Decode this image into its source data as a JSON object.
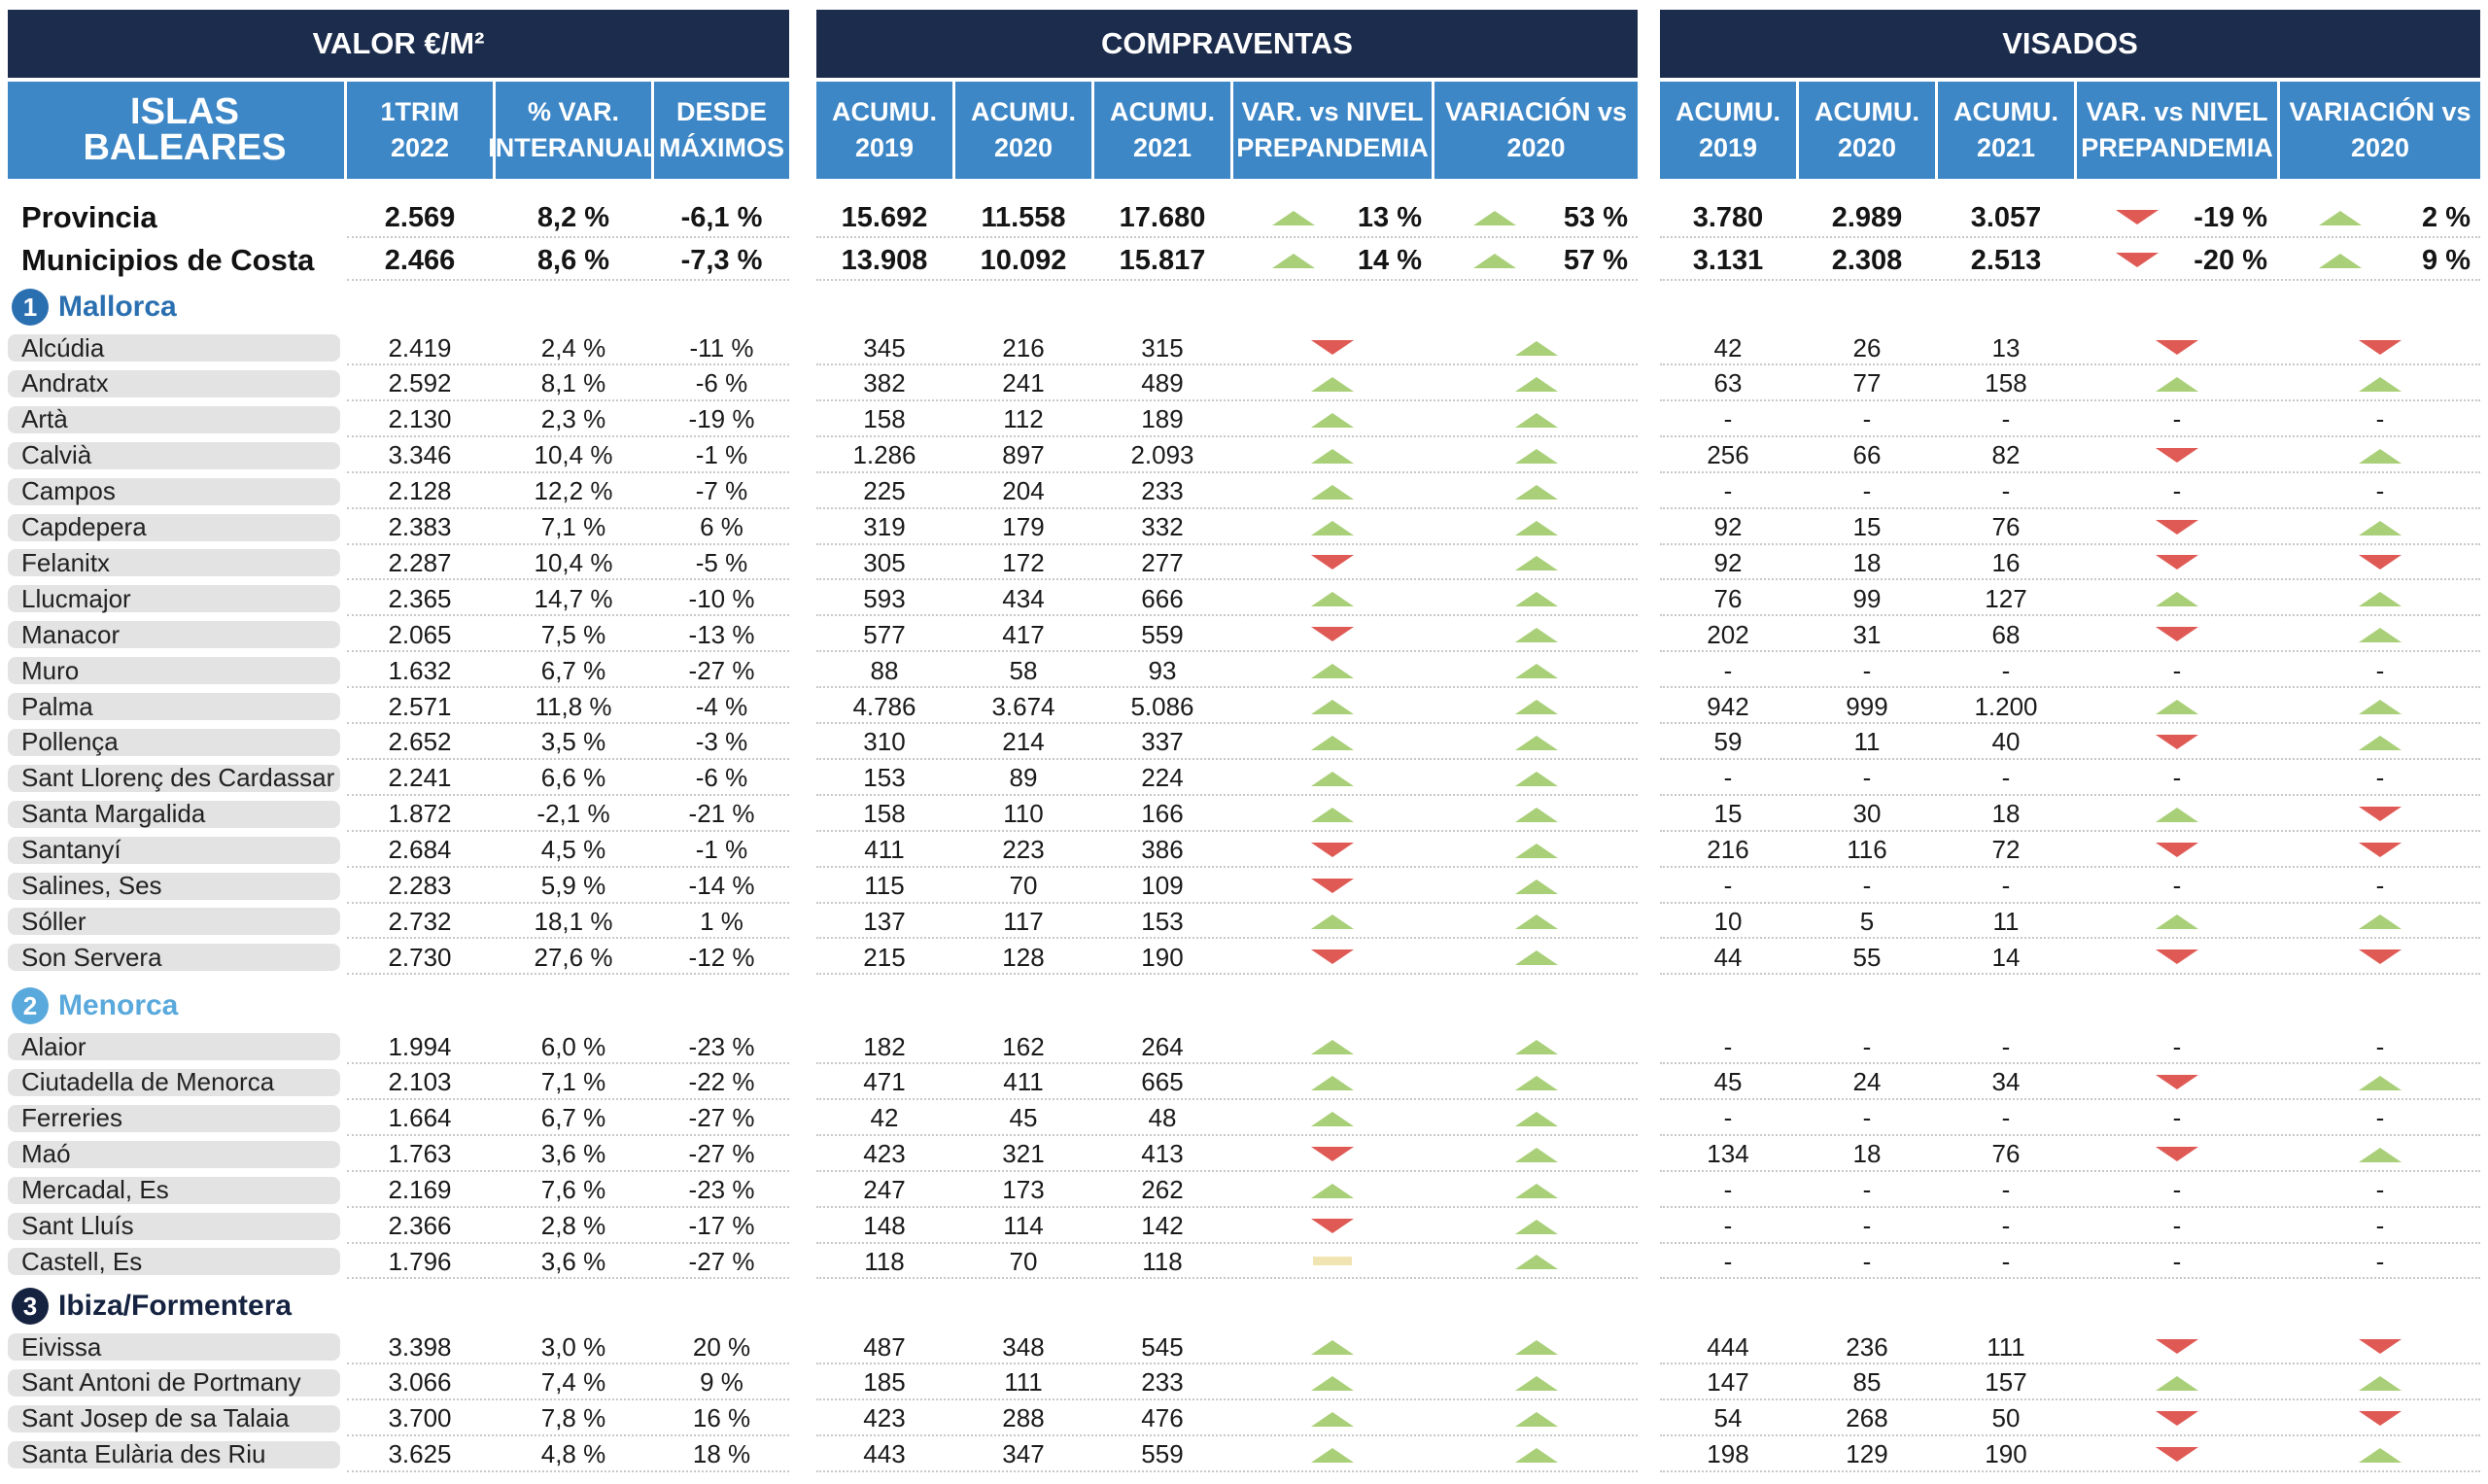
{
  "headers": {
    "valor": "VALOR €/M²",
    "compraventas": "COMPRAVENTAS",
    "visados": "VISADOS",
    "islas": "ISLAS BALEARES",
    "trim": "1TRIM 2022",
    "var_interanual": "% VAR. INTERANUAL",
    "desde_maximos": "DESDE MÁXIMOS",
    "acum_2019": "ACUMU. 2019",
    "acum_2020": "ACUMU. 2020",
    "acum_2021": "ACUMU. 2021",
    "var_nivel": "VAR. vs NIVEL PREPANDEMIA",
    "var_2020": "VARIACIÓN vs 2020"
  },
  "colors": {
    "dark_header": "#1c2c4c",
    "blue_header": "#3d87c7",
    "up": "#a9cf78",
    "down": "#e05a55",
    "flat": "#f1e4b3",
    "mallorca": "#2a6fb0",
    "menorca": "#5aa9dc",
    "ibiza": "#152341"
  },
  "summary": [
    {
      "name": "Provincia",
      "valor": "2.569",
      "var": "8,2 %",
      "max": "-6,1 %",
      "c19": "15.692",
      "c20": "11.558",
      "c21": "17.680",
      "c_pre": {
        "dir": "up",
        "text": "13 %"
      },
      "c_v20": {
        "dir": "up",
        "text": "53 %"
      },
      "v19": "3.780",
      "v20": "2.989",
      "v21": "3.057",
      "v_pre": {
        "dir": "down",
        "text": "-19 %"
      },
      "v_v20": {
        "dir": "up",
        "text": "2 %"
      }
    },
    {
      "name": "Municipios de Costa",
      "valor": "2.466",
      "var": "8,6 %",
      "max": "-7,3 %",
      "c19": "13.908",
      "c20": "10.092",
      "c21": "15.817",
      "c_pre": {
        "dir": "up",
        "text": "14 %"
      },
      "c_v20": {
        "dir": "up",
        "text": "57 %"
      },
      "v19": "3.131",
      "v20": "2.308",
      "v21": "2.513",
      "v_pre": {
        "dir": "down",
        "text": "-20 %"
      },
      "v_v20": {
        "dir": "up",
        "text": "9 %"
      }
    }
  ],
  "sections": [
    {
      "number": "1",
      "name": "Mallorca",
      "color_key": "mallorca",
      "rows": [
        {
          "name": "Alcúdia",
          "valor": "2.419",
          "var": "2,4 %",
          "max": "-11 %",
          "c19": "345",
          "c20": "216",
          "c21": "315",
          "cpre": "down",
          "cv20": "up",
          "v19": "42",
          "v20": "26",
          "v21": "13",
          "vpre": "down",
          "vv20": "down"
        },
        {
          "name": "Andratx",
          "valor": "2.592",
          "var": "8,1 %",
          "max": "-6 %",
          "c19": "382",
          "c20": "241",
          "c21": "489",
          "cpre": "up",
          "cv20": "up",
          "v19": "63",
          "v20": "77",
          "v21": "158",
          "vpre": "up",
          "vv20": "up"
        },
        {
          "name": "Artà",
          "valor": "2.130",
          "var": "2,3 %",
          "max": "-19 %",
          "c19": "158",
          "c20": "112",
          "c21": "189",
          "cpre": "up",
          "cv20": "up",
          "v19": "-",
          "v20": "-",
          "v21": "-",
          "vpre": "-",
          "vv20": "-"
        },
        {
          "name": "Calvià",
          "valor": "3.346",
          "var": "10,4 %",
          "max": "-1 %",
          "c19": "1.286",
          "c20": "897",
          "c21": "2.093",
          "cpre": "up",
          "cv20": "up",
          "v19": "256",
          "v20": "66",
          "v21": "82",
          "vpre": "down",
          "vv20": "up"
        },
        {
          "name": "Campos",
          "valor": "2.128",
          "var": "12,2 %",
          "max": "-7 %",
          "c19": "225",
          "c20": "204",
          "c21": "233",
          "cpre": "up",
          "cv20": "up",
          "v19": "-",
          "v20": "-",
          "v21": "-",
          "vpre": "-",
          "vv20": "-"
        },
        {
          "name": "Capdepera",
          "valor": "2.383",
          "var": "7,1 %",
          "max": "6 %",
          "c19": "319",
          "c20": "179",
          "c21": "332",
          "cpre": "up",
          "cv20": "up",
          "v19": "92",
          "v20": "15",
          "v21": "76",
          "vpre": "down",
          "vv20": "up"
        },
        {
          "name": "Felanitx",
          "valor": "2.287",
          "var": "10,4 %",
          "max": "-5 %",
          "c19": "305",
          "c20": "172",
          "c21": "277",
          "cpre": "down",
          "cv20": "up",
          "v19": "92",
          "v20": "18",
          "v21": "16",
          "vpre": "down",
          "vv20": "down"
        },
        {
          "name": "Llucmajor",
          "valor": "2.365",
          "var": "14,7 %",
          "max": "-10 %",
          "c19": "593",
          "c20": "434",
          "c21": "666",
          "cpre": "up",
          "cv20": "up",
          "v19": "76",
          "v20": "99",
          "v21": "127",
          "vpre": "up",
          "vv20": "up"
        },
        {
          "name": "Manacor",
          "valor": "2.065",
          "var": "7,5 %",
          "max": "-13 %",
          "c19": "577",
          "c20": "417",
          "c21": "559",
          "cpre": "down",
          "cv20": "up",
          "v19": "202",
          "v20": "31",
          "v21": "68",
          "vpre": "down",
          "vv20": "up"
        },
        {
          "name": "Muro",
          "valor": "1.632",
          "var": "6,7 %",
          "max": "-27 %",
          "c19": "88",
          "c20": "58",
          "c21": "93",
          "cpre": "up",
          "cv20": "up",
          "v19": "-",
          "v20": "-",
          "v21": "-",
          "vpre": "-",
          "vv20": "-"
        },
        {
          "name": "Palma",
          "valor": "2.571",
          "var": "11,8 %",
          "max": "-4 %",
          "c19": "4.786",
          "c20": "3.674",
          "c21": "5.086",
          "cpre": "up",
          "cv20": "up",
          "v19": "942",
          "v20": "999",
          "v21": "1.200",
          "vpre": "up",
          "vv20": "up"
        },
        {
          "name": "Pollença",
          "valor": "2.652",
          "var": "3,5 %",
          "max": "-3 %",
          "c19": "310",
          "c20": "214",
          "c21": "337",
          "cpre": "up",
          "cv20": "up",
          "v19": "59",
          "v20": "11",
          "v21": "40",
          "vpre": "down",
          "vv20": "up"
        },
        {
          "name": "Sant Llorenç des Cardassar",
          "valor": "2.241",
          "var": "6,6 %",
          "max": "-6 %",
          "c19": "153",
          "c20": "89",
          "c21": "224",
          "cpre": "up",
          "cv20": "up",
          "v19": "-",
          "v20": "-",
          "v21": "-",
          "vpre": "-",
          "vv20": "-"
        },
        {
          "name": "Santa Margalida",
          "valor": "1.872",
          "var": "-2,1 %",
          "max": "-21 %",
          "c19": "158",
          "c20": "110",
          "c21": "166",
          "cpre": "up",
          "cv20": "up",
          "v19": "15",
          "v20": "30",
          "v21": "18",
          "vpre": "up",
          "vv20": "down"
        },
        {
          "name": "Santanyí",
          "valor": "2.684",
          "var": "4,5 %",
          "max": "-1 %",
          "c19": "411",
          "c20": "223",
          "c21": "386",
          "cpre": "down",
          "cv20": "up",
          "v19": "216",
          "v20": "116",
          "v21": "72",
          "vpre": "down",
          "vv20": "down"
        },
        {
          "name": "Salines, Ses",
          "valor": "2.283",
          "var": "5,9 %",
          "max": "-14 %",
          "c19": "115",
          "c20": "70",
          "c21": "109",
          "cpre": "down",
          "cv20": "up",
          "v19": "-",
          "v20": "-",
          "v21": "-",
          "vpre": "-",
          "vv20": "-"
        },
        {
          "name": "Sóller",
          "valor": "2.732",
          "var": "18,1 %",
          "max": "1 %",
          "c19": "137",
          "c20": "117",
          "c21": "153",
          "cpre": "up",
          "cv20": "up",
          "v19": "10",
          "v20": "5",
          "v21": "11",
          "vpre": "up",
          "vv20": "up"
        },
        {
          "name": "Son Servera",
          "valor": "2.730",
          "var": "27,6 %",
          "max": "-12 %",
          "c19": "215",
          "c20": "128",
          "c21": "190",
          "cpre": "down",
          "cv20": "up",
          "v19": "44",
          "v20": "55",
          "v21": "14",
          "vpre": "down",
          "vv20": "down"
        }
      ]
    },
    {
      "number": "2",
      "name": "Menorca",
      "color_key": "menorca",
      "rows": [
        {
          "name": "Alaior",
          "valor": "1.994",
          "var": "6,0 %",
          "max": "-23 %",
          "c19": "182",
          "c20": "162",
          "c21": "264",
          "cpre": "up",
          "cv20": "up",
          "v19": "-",
          "v20": "-",
          "v21": "-",
          "vpre": "-",
          "vv20": "-"
        },
        {
          "name": "Ciutadella de Menorca",
          "valor": "2.103",
          "var": "7,1 %",
          "max": "-22 %",
          "c19": "471",
          "c20": "411",
          "c21": "665",
          "cpre": "up",
          "cv20": "up",
          "v19": "45",
          "v20": "24",
          "v21": "34",
          "vpre": "down",
          "vv20": "up"
        },
        {
          "name": "Ferreries",
          "valor": "1.664",
          "var": "6,7 %",
          "max": "-27 %",
          "c19": "42",
          "c20": "45",
          "c21": "48",
          "cpre": "up",
          "cv20": "up",
          "v19": "-",
          "v20": "-",
          "v21": "-",
          "vpre": "-",
          "vv20": "-"
        },
        {
          "name": "Maó",
          "valor": "1.763",
          "var": "3,6 %",
          "max": "-27 %",
          "c19": "423",
          "c20": "321",
          "c21": "413",
          "cpre": "down",
          "cv20": "up",
          "v19": "134",
          "v20": "18",
          "v21": "76",
          "vpre": "down",
          "vv20": "up"
        },
        {
          "name": "Mercadal, Es",
          "valor": "2.169",
          "var": "7,6 %",
          "max": "-23 %",
          "c19": "247",
          "c20": "173",
          "c21": "262",
          "cpre": "up",
          "cv20": "up",
          "v19": "-",
          "v20": "-",
          "v21": "-",
          "vpre": "-",
          "vv20": "-"
        },
        {
          "name": "Sant Lluís",
          "valor": "2.366",
          "var": "2,8 %",
          "max": "-17 %",
          "c19": "148",
          "c20": "114",
          "c21": "142",
          "cpre": "down",
          "cv20": "up",
          "v19": "-",
          "v20": "-",
          "v21": "-",
          "vpre": "-",
          "vv20": "-"
        },
        {
          "name": "Castell, Es",
          "valor": "1.796",
          "var": "3,6 %",
          "max": "-27 %",
          "c19": "118",
          "c20": "70",
          "c21": "118",
          "cpre": "flat",
          "cv20": "up",
          "v19": "-",
          "v20": "-",
          "v21": "-",
          "vpre": "-",
          "vv20": "-"
        }
      ]
    },
    {
      "number": "3",
      "name": "Ibiza/Formentera",
      "color_key": "ibiza",
      "rows": [
        {
          "name": "Eivissa",
          "valor": "3.398",
          "var": "3,0 %",
          "max": "20 %",
          "c19": "487",
          "c20": "348",
          "c21": "545",
          "cpre": "up",
          "cv20": "up",
          "v19": "444",
          "v20": "236",
          "v21": "111",
          "vpre": "down",
          "vv20": "down"
        },
        {
          "name": "Sant Antoni de Portmany",
          "valor": "3.066",
          "var": "7,4 %",
          "max": "9 %",
          "c19": "185",
          "c20": "111",
          "c21": "233",
          "cpre": "up",
          "cv20": "up",
          "v19": "147",
          "v20": "85",
          "v21": "157",
          "vpre": "up",
          "vv20": "up"
        },
        {
          "name": "Sant Josep de sa Talaia",
          "valor": "3.700",
          "var": "7,8 %",
          "max": "16 %",
          "c19": "423",
          "c20": "288",
          "c21": "476",
          "cpre": "up",
          "cv20": "up",
          "v19": "54",
          "v20": "268",
          "v21": "50",
          "vpre": "down",
          "vv20": "down"
        },
        {
          "name": "Santa Eulària des Riu",
          "valor": "3.625",
          "var": "4,8 %",
          "max": "18 %",
          "c19": "443",
          "c20": "347",
          "c21": "559",
          "cpre": "up",
          "cv20": "up",
          "v19": "198",
          "v20": "129",
          "v21": "190",
          "vpre": "down",
          "vv20": "up"
        }
      ]
    }
  ]
}
